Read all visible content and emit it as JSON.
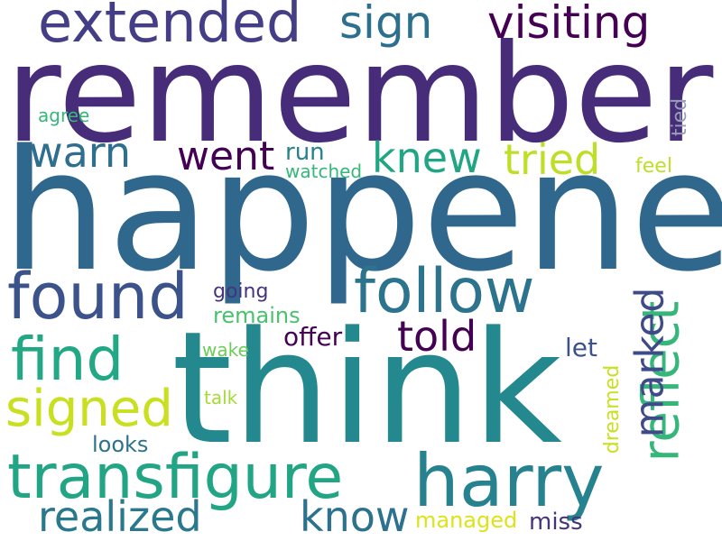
{
  "words": [
    {
      "text": "remember",
      "color": "#472c7a"
    },
    {
      "text": "happened",
      "color": "#30678d"
    },
    {
      "text": "think",
      "color": "#23898e"
    },
    {
      "text": "extended",
      "color": "#433e85"
    },
    {
      "text": "sign",
      "color": "#2d708e"
    },
    {
      "text": "visiting",
      "color": "#440154"
    },
    {
      "text": "warn",
      "color": "#2e6e8e"
    },
    {
      "text": "went",
      "color": "#440154"
    },
    {
      "text": "run",
      "color": "#26828e"
    },
    {
      "text": "watched",
      "color": "#35b779"
    },
    {
      "text": "knew",
      "color": "#21a685"
    },
    {
      "text": "tried",
      "color": "#bddf26"
    },
    {
      "text": "feel",
      "color": "#bddf26"
    },
    {
      "text": "agree",
      "color": "#35b779"
    },
    {
      "text": "tied",
      "color": "#95a0b5"
    },
    {
      "text": "found",
      "color": "#3b528b"
    },
    {
      "text": "follow",
      "color": "#2c738e"
    },
    {
      "text": "reflect",
      "color": "#35b779"
    },
    {
      "text": "marked",
      "color": "#3e4a89"
    },
    {
      "text": "going",
      "color": "#46337e"
    },
    {
      "text": "remains",
      "color": "#4ac16d"
    },
    {
      "text": "told",
      "color": "#440154"
    },
    {
      "text": "offer",
      "color": "#440154"
    },
    {
      "text": "find",
      "color": "#22a884"
    },
    {
      "text": "signed",
      "color": "#c8e020"
    },
    {
      "text": "wake",
      "color": "#6ccd5a"
    },
    {
      "text": "talk",
      "color": "#a5db36"
    },
    {
      "text": "let",
      "color": "#3b528b"
    },
    {
      "text": "dreamed",
      "color": "#c8e020"
    },
    {
      "text": "looks",
      "color": "#2c728e"
    },
    {
      "text": "transfigure",
      "color": "#21a585"
    },
    {
      "text": "harry",
      "color": "#26828e"
    },
    {
      "text": "realized",
      "color": "#2a788e"
    },
    {
      "text": "know",
      "color": "#2c728e"
    },
    {
      "text": "managed",
      "color": "#dde318"
    },
    {
      "text": "miss",
      "color": "#46337e"
    }
  ]
}
